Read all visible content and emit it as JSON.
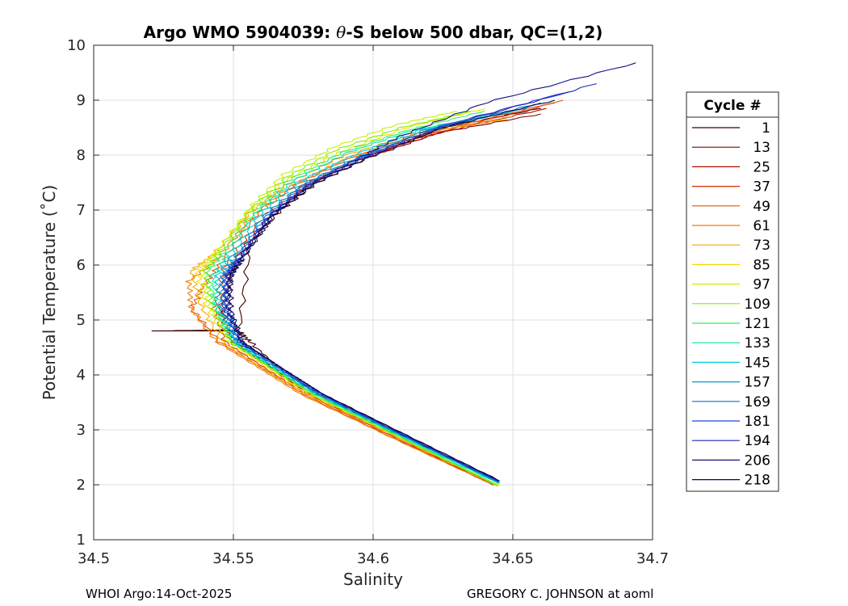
{
  "chart_data": {
    "type": "line",
    "title": "Argo WMO 5904039: θ-S below 500 dbar,  QC=(1,2)",
    "title_parts": {
      "prefix": "Argo WMO 5904039: ",
      "symbol": "θ",
      "suffix": "-S below 500 dbar,  QC=(1,2)"
    },
    "xlabel": "Salinity",
    "ylabel": "Potential Temperature (˚C)",
    "xlim": [
      34.5,
      34.7
    ],
    "ylim": [
      1,
      10
    ],
    "xticks": [
      34.5,
      34.55,
      34.6,
      34.65,
      34.7
    ],
    "xtick_labels": [
      "34.5",
      "34.55",
      "34.6",
      "34.65",
      "34.7"
    ],
    "yticks": [
      1,
      2,
      3,
      4,
      5,
      6,
      7,
      8,
      9,
      10
    ],
    "ytick_labels": [
      "1",
      "2",
      "3",
      "4",
      "5",
      "6",
      "7",
      "8",
      "9",
      "10"
    ],
    "grid": true,
    "legend": {
      "title": "Cycle #",
      "position": "right",
      "entries": [
        "1",
        "13",
        "25",
        "37",
        "49",
        "61",
        "73",
        "85",
        "97",
        "109",
        "121",
        "133",
        "145",
        "157",
        "169",
        "181",
        "194",
        "206",
        "218"
      ],
      "colors": [
        "#3d0000",
        "#7d0000",
        "#b80a00",
        "#d62a00",
        "#e85200",
        "#f07a00",
        "#f4ab00",
        "#f6dc00",
        "#c8f000",
        "#7df000",
        "#33f05a",
        "#00e6a8",
        "#00ccdd",
        "#009ec8",
        "#0a72d8",
        "#1f44dc",
        "#1f25b8",
        "#14147e",
        "#070748"
      ]
    },
    "series": [
      {
        "name": "1",
        "color": "#3d0000",
        "x": [
          34.645,
          34.61,
          34.58,
          34.567,
          34.556,
          34.552,
          34.52,
          34.552,
          34.556,
          34.567,
          34.58,
          34.6,
          34.625,
          34.66
        ],
        "y": [
          2.05,
          2.9,
          3.65,
          4.1,
          4.6,
          4.8,
          4.8,
          4.82,
          6.4,
          7.0,
          7.5,
          8.0,
          8.5,
          8.85
        ]
      },
      {
        "name": "13",
        "color": "#7d0000",
        "x": [
          34.643,
          34.608,
          34.578,
          34.565,
          34.55,
          34.546,
          34.55,
          34.564,
          34.578,
          34.598,
          34.623,
          34.66
        ],
        "y": [
          2.0,
          2.9,
          3.65,
          4.1,
          4.6,
          5.2,
          6.0,
          6.9,
          7.45,
          7.95,
          8.4,
          8.75
        ]
      },
      {
        "name": "25",
        "color": "#b80a00",
        "x": [
          34.643,
          34.607,
          34.577,
          34.564,
          34.549,
          34.545,
          34.549,
          34.563,
          34.577,
          34.597,
          34.623,
          34.662
        ],
        "y": [
          2.0,
          2.9,
          3.65,
          4.1,
          4.6,
          5.2,
          6.0,
          6.9,
          7.45,
          7.95,
          8.4,
          8.85
        ]
      },
      {
        "name": "37",
        "color": "#d62a00",
        "x": [
          34.643,
          34.606,
          34.576,
          34.562,
          34.547,
          34.543,
          34.547,
          34.561,
          34.575,
          34.595,
          34.622,
          34.665
        ],
        "y": [
          2.0,
          2.9,
          3.65,
          4.1,
          4.6,
          5.2,
          6.0,
          6.9,
          7.45,
          7.95,
          8.4,
          8.95
        ]
      },
      {
        "name": "49",
        "color": "#e85200",
        "x": [
          34.643,
          34.605,
          34.575,
          34.561,
          34.545,
          34.535,
          34.539,
          34.545,
          34.558,
          34.572,
          34.592,
          34.62,
          34.668
        ],
        "y": [
          2.0,
          2.9,
          3.65,
          4.1,
          4.6,
          5.2,
          5.6,
          6.0,
          6.9,
          7.45,
          7.95,
          8.4,
          9.0
        ]
      },
      {
        "name": "61",
        "color": "#f07a00",
        "x": [
          34.643,
          34.605,
          34.574,
          34.56,
          34.544,
          34.535,
          34.534,
          34.544,
          34.557,
          34.571,
          34.591,
          34.618,
          34.65
        ],
        "y": [
          2.0,
          2.9,
          3.65,
          4.1,
          4.6,
          5.2,
          5.7,
          6.1,
          6.9,
          7.45,
          7.95,
          8.4,
          8.7
        ]
      },
      {
        "name": "73",
        "color": "#f4ab00",
        "x": [
          34.645,
          34.607,
          34.576,
          34.561,
          34.546,
          34.538,
          34.535,
          34.543,
          34.556,
          34.57,
          34.59,
          34.616,
          34.648
        ],
        "y": [
          1.97,
          2.9,
          3.65,
          4.1,
          4.6,
          5.3,
          5.9,
          6.2,
          6.95,
          7.5,
          8.0,
          8.4,
          8.65
        ]
      },
      {
        "name": "85",
        "color": "#f6dc00",
        "x": [
          34.645,
          34.608,
          34.577,
          34.563,
          34.548,
          34.54,
          34.537,
          34.544,
          34.556,
          34.569,
          34.588,
          34.612,
          34.64
        ],
        "y": [
          1.98,
          2.9,
          3.65,
          4.1,
          4.6,
          5.3,
          5.9,
          6.25,
          7.0,
          7.55,
          8.05,
          8.5,
          8.85
        ]
      },
      {
        "name": "97",
        "color": "#c8f000",
        "x": [
          34.645,
          34.608,
          34.578,
          34.564,
          34.549,
          34.541,
          34.539,
          34.545,
          34.556,
          34.568,
          34.586,
          34.608,
          34.63
        ],
        "y": [
          1.99,
          2.9,
          3.65,
          4.1,
          4.6,
          5.3,
          5.9,
          6.3,
          7.05,
          7.65,
          8.15,
          8.55,
          8.8
        ]
      },
      {
        "name": "109",
        "color": "#7df000",
        "x": [
          34.644,
          34.608,
          34.578,
          34.564,
          34.549,
          34.542,
          34.54,
          34.546,
          34.557,
          34.569,
          34.587,
          34.61,
          34.635
        ],
        "y": [
          2.0,
          2.9,
          3.65,
          4.1,
          4.6,
          5.3,
          5.9,
          6.3,
          7.05,
          7.6,
          8.1,
          8.5,
          8.8
        ]
      },
      {
        "name": "121",
        "color": "#33f05a",
        "x": [
          34.644,
          34.609,
          34.579,
          34.565,
          34.55,
          34.543,
          34.541,
          34.547,
          34.558,
          34.57,
          34.589,
          34.612,
          34.64
        ],
        "y": [
          2.0,
          2.9,
          3.65,
          4.1,
          4.6,
          5.3,
          5.9,
          6.25,
          7.0,
          7.55,
          8.05,
          8.45,
          8.8
        ]
      },
      {
        "name": "133",
        "color": "#00e6a8",
        "x": [
          34.645,
          34.609,
          34.579,
          34.565,
          34.55,
          34.544,
          34.543,
          34.548,
          34.559,
          34.572,
          34.591,
          34.614,
          34.645
        ],
        "y": [
          2.02,
          2.9,
          3.65,
          4.1,
          4.6,
          5.2,
          5.8,
          6.2,
          7.0,
          7.55,
          8.05,
          8.45,
          8.75
        ]
      },
      {
        "name": "145",
        "color": "#00ccdd",
        "x": [
          34.645,
          34.61,
          34.58,
          34.566,
          34.551,
          34.545,
          34.544,
          34.549,
          34.56,
          34.573,
          34.593,
          34.616,
          34.65
        ],
        "y": [
          2.03,
          2.9,
          3.65,
          4.1,
          4.6,
          5.2,
          5.8,
          6.15,
          6.95,
          7.5,
          8.0,
          8.45,
          8.8
        ]
      },
      {
        "name": "157",
        "color": "#009ec8",
        "x": [
          34.645,
          34.61,
          34.58,
          34.566,
          34.551,
          34.546,
          34.546,
          34.55,
          34.561,
          34.574,
          34.594,
          34.618,
          34.655
        ],
        "y": [
          2.04,
          2.9,
          3.65,
          4.1,
          4.6,
          5.2,
          5.8,
          6.1,
          6.9,
          7.45,
          7.95,
          8.45,
          8.85
        ]
      },
      {
        "name": "169",
        "color": "#0a72d8",
        "x": [
          34.645,
          34.611,
          34.581,
          34.567,
          34.552,
          34.547,
          34.547,
          34.551,
          34.562,
          34.575,
          34.595,
          34.62,
          34.66
        ],
        "y": [
          2.05,
          2.9,
          3.65,
          4.1,
          4.6,
          5.2,
          5.8,
          6.1,
          6.9,
          7.45,
          7.95,
          8.45,
          8.95
        ]
      },
      {
        "name": "181",
        "color": "#1f44dc",
        "x": [
          34.645,
          34.611,
          34.581,
          34.567,
          34.552,
          34.547,
          34.547,
          34.552,
          34.563,
          34.576,
          34.596,
          34.622,
          34.67
        ],
        "y": [
          2.06,
          2.9,
          3.65,
          4.1,
          4.6,
          5.2,
          5.8,
          6.1,
          6.9,
          7.45,
          7.95,
          8.5,
          9.15
        ]
      },
      {
        "name": "194",
        "color": "#1f25b8",
        "x": [
          34.645,
          34.611,
          34.582,
          34.568,
          34.553,
          34.548,
          34.548,
          34.552,
          34.563,
          34.577,
          34.597,
          34.624,
          34.68
        ],
        "y": [
          2.07,
          2.9,
          3.65,
          4.1,
          4.6,
          5.2,
          5.8,
          6.1,
          6.9,
          7.45,
          7.95,
          8.5,
          9.3
        ]
      },
      {
        "name": "206",
        "color": "#14147e",
        "x": [
          34.645,
          34.612,
          34.582,
          34.568,
          34.553,
          34.548,
          34.549,
          34.553,
          34.564,
          34.577,
          34.595,
          34.61,
          34.64,
          34.694
        ],
        "y": [
          2.08,
          2.9,
          3.65,
          4.1,
          4.6,
          5.2,
          5.8,
          6.1,
          6.9,
          7.45,
          7.95,
          8.35,
          8.95,
          9.68
        ]
      },
      {
        "name": "218",
        "color": "#070748",
        "x": [
          34.645,
          34.612,
          34.582,
          34.568,
          34.553,
          34.549,
          34.549,
          34.553,
          34.564,
          34.578,
          34.598,
          34.625,
          34.665
        ],
        "y": [
          2.08,
          2.9,
          3.65,
          4.1,
          4.6,
          5.2,
          5.8,
          6.1,
          6.9,
          7.45,
          7.95,
          8.5,
          9.0
        ]
      }
    ]
  },
  "footer": {
    "left": "WHOI Argo:14-Oct-2025",
    "right": "GREGORY C. JOHNSON at aoml"
  }
}
